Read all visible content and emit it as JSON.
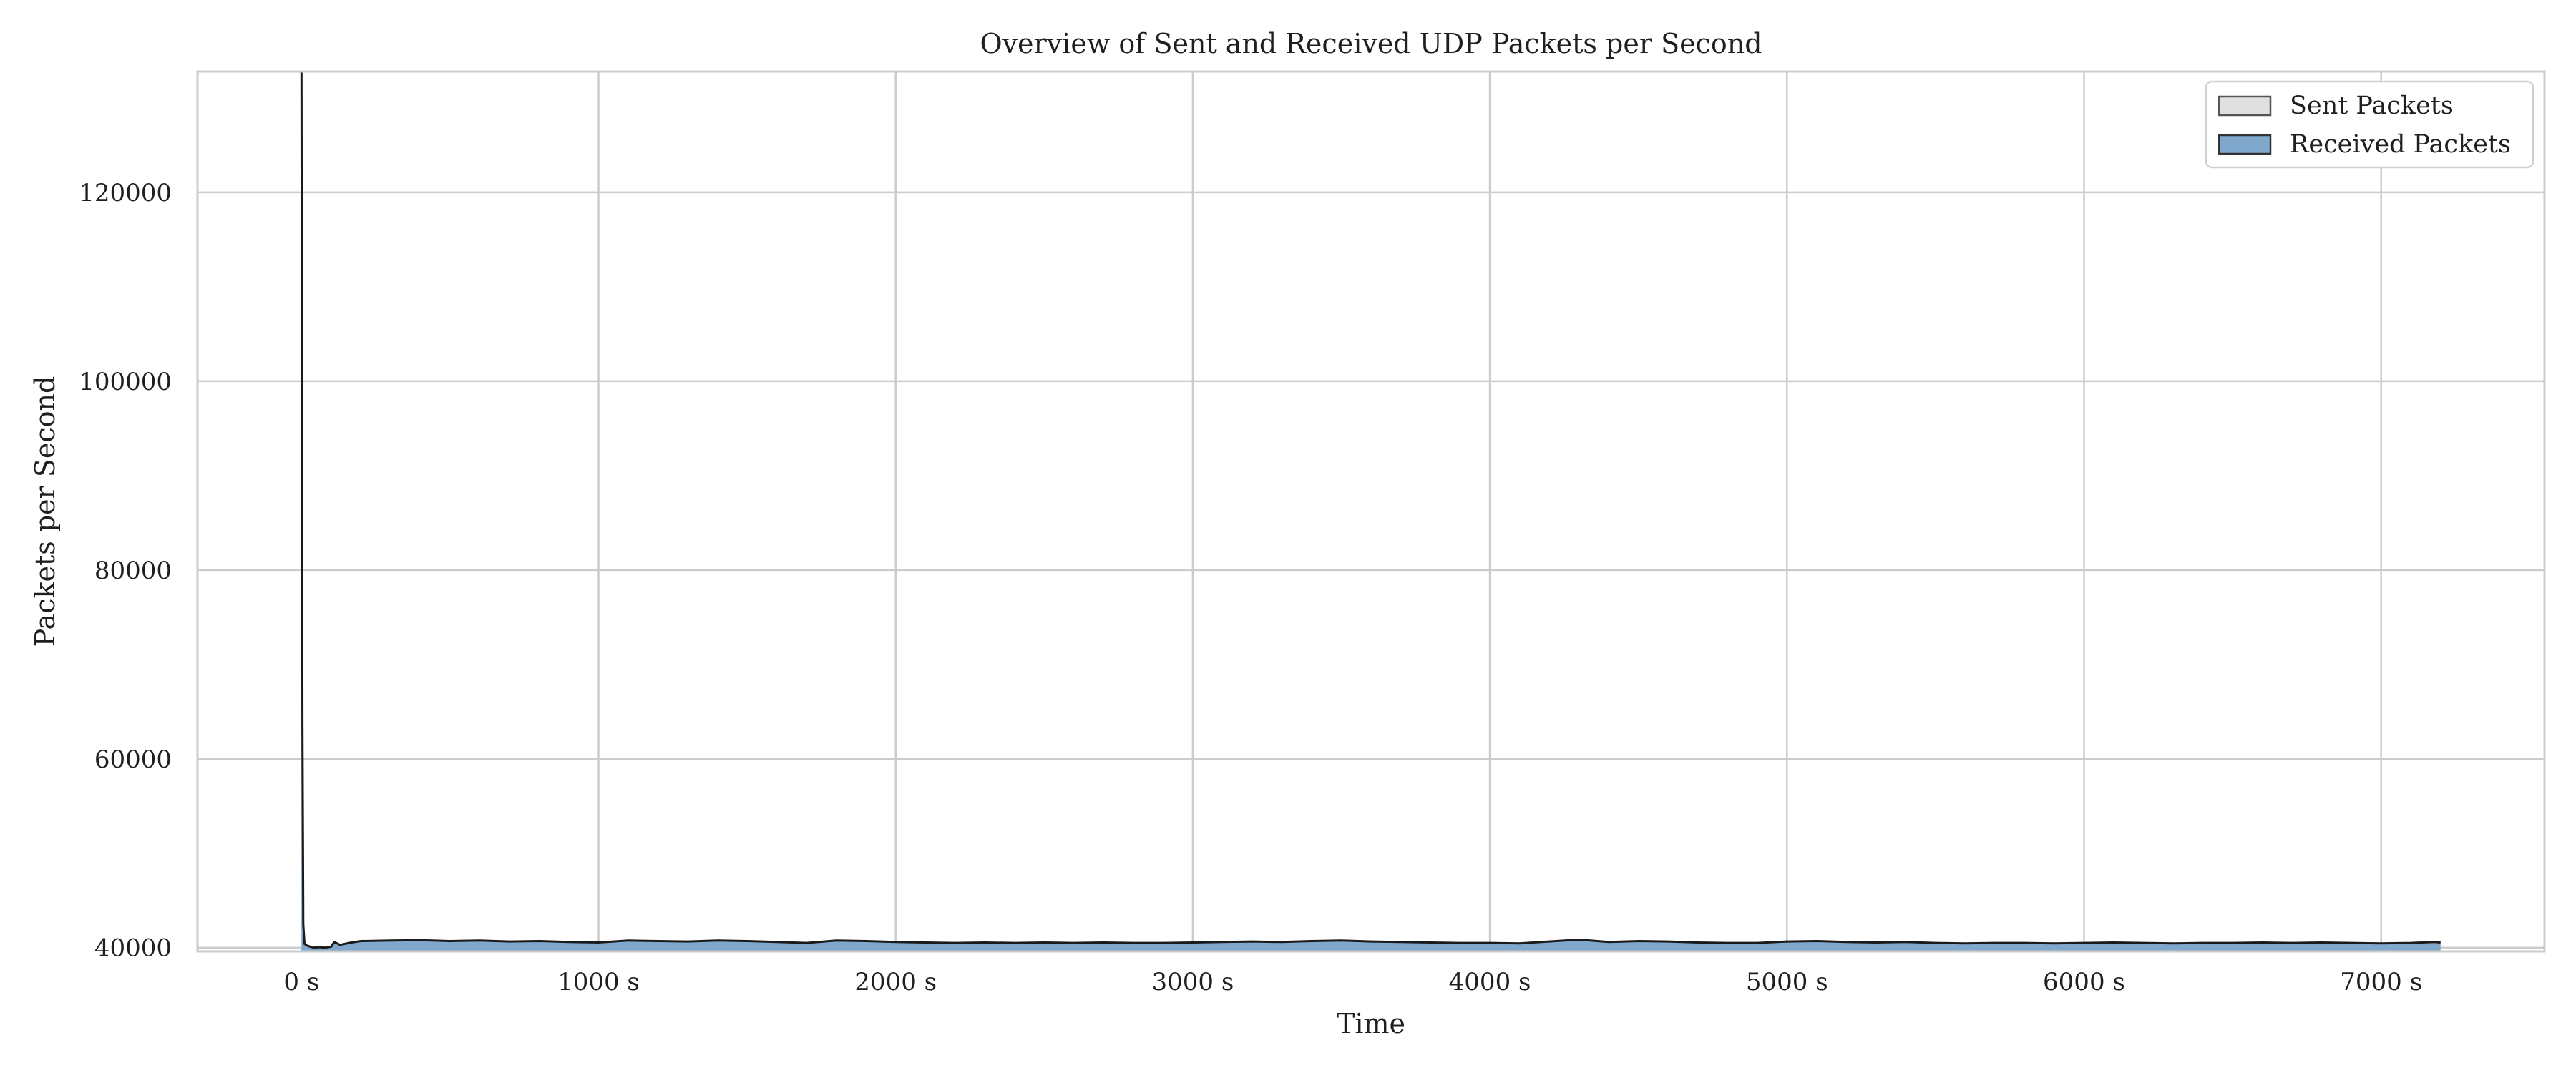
{
  "chart_data": {
    "type": "area",
    "title": "Overview of Sent and Received UDP Packets per Second",
    "xlabel": "Time",
    "ylabel": "Packets per Second",
    "xlim": [
      -350,
      7550
    ],
    "ylim": [
      39600,
      132800
    ],
    "x_ticks": [
      0,
      1000,
      2000,
      3000,
      4000,
      5000,
      6000,
      7000
    ],
    "x_tick_labels": [
      "0 s",
      "1000 s",
      "2000 s",
      "3000 s",
      "4000 s",
      "5000 s",
      "6000 s",
      "7000 s"
    ],
    "y_ticks": [
      40000,
      60000,
      80000,
      100000,
      120000
    ],
    "y_tick_labels": [
      "40000",
      "60000",
      "80000",
      "100000",
      "120000"
    ],
    "grid": true,
    "legend_position": "top-right",
    "colors": {
      "sent_fill": "#e0e0e0",
      "received_fill": "#80a8cc",
      "edge": "#1a1a1a",
      "grid": "#cccccc",
      "frame": "#cccccc"
    },
    "series": [
      {
        "name": "Sent Packets",
        "x": [
          0,
          3,
          6,
          10,
          20,
          40,
          60,
          80,
          100,
          110,
          130,
          160,
          200,
          300,
          400,
          500,
          600,
          700,
          800,
          900,
          1000,
          1100,
          1200,
          1300,
          1400,
          1500,
          1600,
          1700,
          1800,
          1900,
          2000,
          2100,
          2200,
          2300,
          2400,
          2500,
          2600,
          2700,
          2800,
          2900,
          3000,
          3100,
          3200,
          3300,
          3400,
          3500,
          3600,
          3700,
          3800,
          3900,
          4000,
          4100,
          4200,
          4300,
          4400,
          4500,
          4600,
          4700,
          4800,
          4900,
          5000,
          5100,
          5200,
          5300,
          5400,
          5500,
          5600,
          5700,
          5800,
          5900,
          6000,
          6100,
          6200,
          6300,
          6400,
          6500,
          6600,
          6700,
          6800,
          6900,
          7000,
          7100,
          7180,
          7200
        ],
        "values": [
          132800,
          64000,
          42500,
          40400,
          40200,
          40000,
          40050,
          40000,
          40100,
          40600,
          40300,
          40500,
          40700,
          40750,
          40800,
          40700,
          40750,
          40650,
          40700,
          40600,
          40550,
          40750,
          40700,
          40650,
          40750,
          40700,
          40600,
          40500,
          40750,
          40700,
          40600,
          40550,
          40500,
          40550,
          40500,
          40550,
          40500,
          40550,
          40500,
          40500,
          40550,
          40600,
          40650,
          40600,
          40700,
          40750,
          40650,
          40600,
          40550,
          40500,
          40500,
          40450,
          40650,
          40850,
          40600,
          40700,
          40650,
          40550,
          40500,
          40500,
          40650,
          40700,
          40600,
          40550,
          40600,
          40500,
          40450,
          40500,
          40500,
          40450,
          40500,
          40550,
          40500,
          40450,
          40500,
          40500,
          40550,
          40500,
          40550,
          40500,
          40450,
          40500,
          40600,
          40550
        ]
      },
      {
        "name": "Received Packets",
        "x": [
          0,
          3,
          6,
          10,
          20,
          40,
          60,
          80,
          100,
          110,
          130,
          160,
          200,
          300,
          400,
          500,
          600,
          700,
          800,
          900,
          1000,
          1100,
          1200,
          1300,
          1400,
          1500,
          1600,
          1700,
          1800,
          1900,
          2000,
          2100,
          2200,
          2300,
          2400,
          2500,
          2600,
          2700,
          2800,
          2900,
          3000,
          3100,
          3200,
          3300,
          3400,
          3500,
          3600,
          3700,
          3800,
          3900,
          4000,
          4100,
          4200,
          4300,
          4400,
          4500,
          4600,
          4700,
          4800,
          4900,
          5000,
          5100,
          5200,
          5300,
          5400,
          5500,
          5600,
          5700,
          5800,
          5900,
          6000,
          6100,
          6200,
          6300,
          6400,
          6500,
          6600,
          6700,
          6800,
          6900,
          7000,
          7100,
          7180,
          7200
        ],
        "values": [
          132800,
          64000,
          42500,
          40400,
          40200,
          40000,
          40050,
          40000,
          40100,
          40600,
          40300,
          40500,
          40700,
          40750,
          40800,
          40700,
          40750,
          40650,
          40700,
          40600,
          40550,
          40750,
          40700,
          40650,
          40750,
          40700,
          40600,
          40500,
          40750,
          40700,
          40600,
          40550,
          40500,
          40550,
          40500,
          40550,
          40500,
          40550,
          40500,
          40500,
          40550,
          40600,
          40650,
          40600,
          40700,
          40750,
          40650,
          40600,
          40550,
          40500,
          40500,
          40450,
          40650,
          40850,
          40600,
          40700,
          40650,
          40550,
          40500,
          40500,
          40650,
          40700,
          40600,
          40550,
          40600,
          40500,
          40450,
          40500,
          40500,
          40450,
          40500,
          40550,
          40500,
          40450,
          40500,
          40500,
          40550,
          40500,
          40550,
          40500,
          40450,
          40500,
          40600,
          40550
        ]
      }
    ]
  }
}
